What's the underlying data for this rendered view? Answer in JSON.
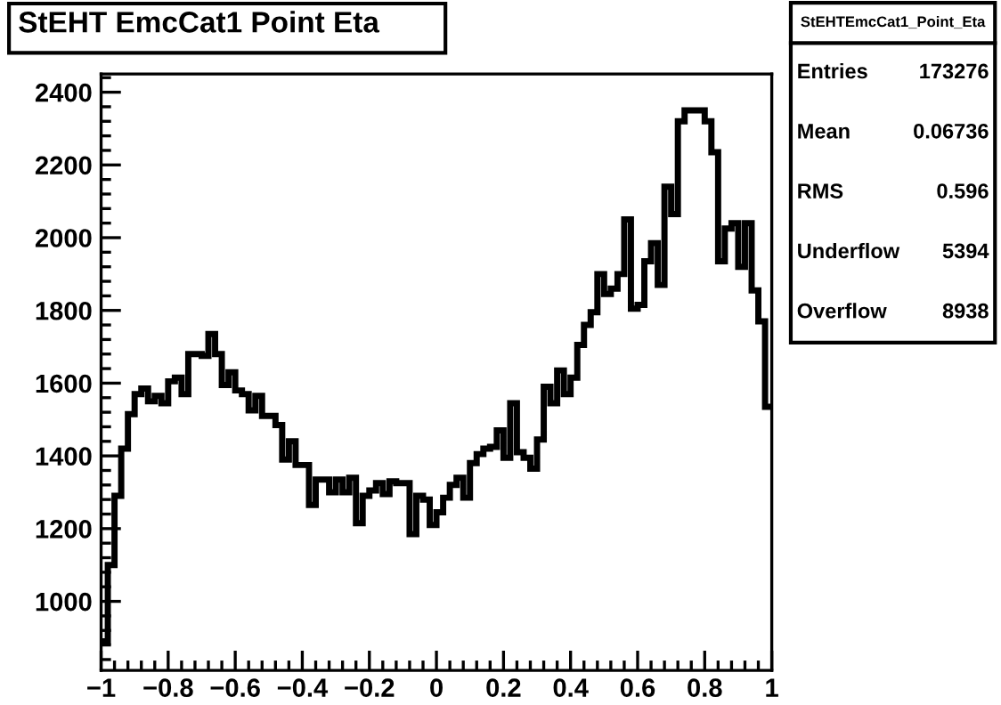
{
  "chart_data": {
    "type": "histogram",
    "title": "StEHT EmcCat1 Point Eta",
    "bins": [
      -1.0,
      -0.98,
      -0.96,
      -0.94,
      -0.92,
      -0.9,
      -0.88,
      -0.86,
      -0.84,
      -0.82,
      -0.8,
      -0.78,
      -0.76,
      -0.74,
      -0.72,
      -0.7,
      -0.68,
      -0.66,
      -0.64,
      -0.62,
      -0.6,
      -0.58,
      -0.56,
      -0.54,
      -0.52,
      -0.5,
      -0.48,
      -0.46,
      -0.44,
      -0.42,
      -0.4,
      -0.38,
      -0.36,
      -0.34,
      -0.32,
      -0.3,
      -0.28,
      -0.26,
      -0.24,
      -0.22,
      -0.2,
      -0.18,
      -0.16,
      -0.14,
      -0.12,
      -0.1,
      -0.08,
      -0.06,
      -0.04,
      -0.02,
      0.0,
      0.02,
      0.04,
      0.06,
      0.08,
      0.1,
      0.12,
      0.14,
      0.16,
      0.18,
      0.2,
      0.22,
      0.24,
      0.26,
      0.28,
      0.3,
      0.32,
      0.34,
      0.36,
      0.38,
      0.4,
      0.42,
      0.44,
      0.46,
      0.48,
      0.5,
      0.52,
      0.54,
      0.56,
      0.58,
      0.6,
      0.62,
      0.64,
      0.66,
      0.68,
      0.7,
      0.72,
      0.74,
      0.76,
      0.78,
      0.8,
      0.82,
      0.84,
      0.86,
      0.88,
      0.9,
      0.92,
      0.94,
      0.96,
      0.98,
      1.0
    ],
    "values": [
      890,
      1100,
      1290,
      1420,
      1515,
      1570,
      1585,
      1550,
      1565,
      1545,
      1605,
      1615,
      1570,
      1680,
      1680,
      1675,
      1735,
      1680,
      1595,
      1630,
      1580,
      1570,
      1525,
      1565,
      1510,
      1510,
      1485,
      1390,
      1440,
      1375,
      1375,
      1265,
      1335,
      1335,
      1300,
      1335,
      1300,
      1340,
      1215,
      1290,
      1305,
      1325,
      1295,
      1330,
      1325,
      1325,
      1185,
      1290,
      1280,
      1210,
      1245,
      1285,
      1320,
      1340,
      1285,
      1380,
      1405,
      1420,
      1425,
      1470,
      1395,
      1545,
      1410,
      1395,
      1365,
      1445,
      1590,
      1545,
      1635,
      1570,
      1615,
      1705,
      1760,
      1795,
      1900,
      1845,
      1860,
      1900,
      2050,
      1805,
      1815,
      1935,
      1985,
      1870,
      2140,
      2065,
      2320,
      2350,
      2350,
      2350,
      2320,
      2235,
      1935,
      2025,
      2040,
      1920,
      2040,
      1855,
      1770,
      1535
    ],
    "color": "#000000",
    "xlim": [
      -1,
      1
    ],
    "xticks": [
      {
        "value": -1,
        "label": "−1"
      },
      {
        "value": -0.8,
        "label": "−0.8"
      },
      {
        "value": -0.6,
        "label": "−0.6"
      },
      {
        "value": -0.4,
        "label": "−0.4"
      },
      {
        "value": -0.2,
        "label": "−0.2"
      },
      0,
      0.2,
      0.4,
      0.6,
      0.8,
      1
    ],
    "ylim": [
      810,
      2450
    ],
    "yticks": [
      1000,
      1200,
      1400,
      1600,
      1800,
      2000,
      2200,
      2400
    ],
    "annotations": [
      "StEHTEmcCat1_Point_Eta",
      "Entries 173276",
      "Mean 0.06736",
      "RMS 0.596",
      "Underflow 5394",
      "Overflow 8938"
    ]
  }
}
